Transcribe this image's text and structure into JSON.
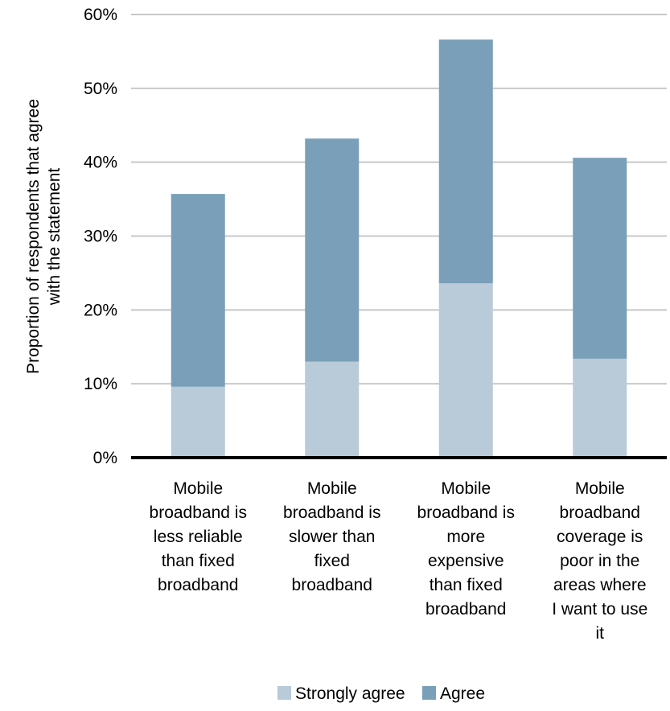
{
  "chart_data": {
    "type": "bar",
    "stacked": true,
    "title": "",
    "xlabel": "",
    "ylabel": "Proportion of respondents that agree with the statement",
    "ylabel_lines": [
      "Proportion of respondents that agree",
      "with the statement"
    ],
    "ylim": [
      0,
      60
    ],
    "yticks": [
      "0%",
      "10%",
      "20%",
      "30%",
      "40%",
      "50%",
      "60%"
    ],
    "ytick_values": [
      0,
      10,
      20,
      30,
      40,
      50,
      60
    ],
    "grid": true,
    "legend_position": "bottom",
    "categories": [
      "Mobile broadband is less reliable than fixed broadband",
      "Mobile broadband is slower than fixed broadband",
      "Mobile broadband is more expensive than fixed broadband",
      "Mobile broadband coverage is poor in the areas where I want to use it"
    ],
    "category_lines": [
      [
        "Mobile",
        "broadband is",
        "less reliable",
        "than fixed",
        "broadband"
      ],
      [
        "Mobile",
        "broadband is",
        "slower than",
        "fixed",
        "broadband"
      ],
      [
        "Mobile",
        "broadband is",
        "more",
        "expensive",
        "than fixed",
        "broadband"
      ],
      [
        "Mobile",
        "broadband",
        "coverage is",
        "poor in the",
        "areas where",
        "I want to use",
        "it"
      ]
    ],
    "series": [
      {
        "name": "Strongly agree",
        "color": "#b9cad8",
        "values": [
          9.6,
          13.0,
          23.6,
          13.4
        ]
      },
      {
        "name": "Agree",
        "color": "#7a9fb8",
        "values": [
          26.1,
          30.2,
          33.0,
          27.2
        ]
      }
    ]
  }
}
